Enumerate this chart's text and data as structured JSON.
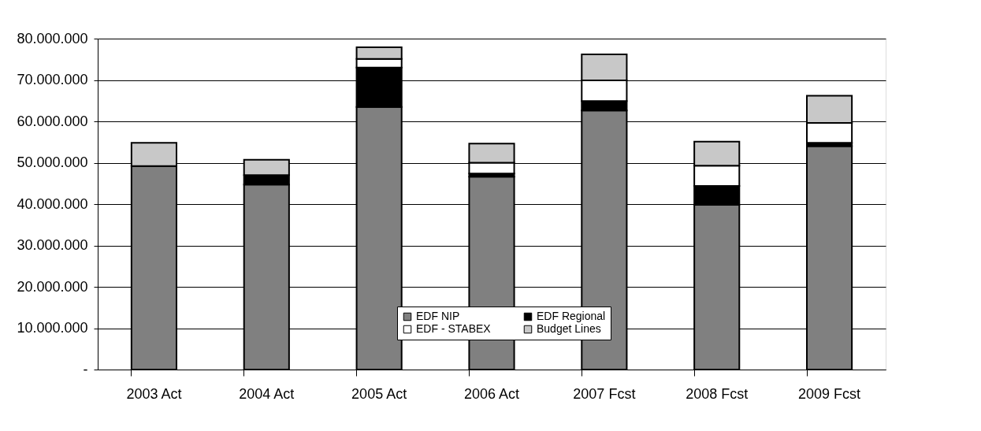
{
  "chart_data": {
    "type": "bar",
    "stacked": true,
    "categories": [
      "2003 Act",
      "2004 Act",
      "2005 Act",
      "2006 Act",
      "2007 Fcst",
      "2008 Fcst",
      "2009 Fcst"
    ],
    "series": [
      {
        "name": "EDF NIP",
        "color": "#808080",
        "values": [
          49200000,
          44700000,
          63500000,
          46600000,
          62600000,
          39800000,
          54000000
        ]
      },
      {
        "name": "EDF Regional",
        "color": "#000000",
        "values": [
          0,
          2300000,
          9500000,
          800000,
          2300000,
          4600000,
          800000
        ]
      },
      {
        "name": "EDF - STABEX",
        "color": "#ffffff",
        "values": [
          0,
          null,
          2100000,
          2600000,
          5000000,
          4900000,
          4800000
        ]
      },
      {
        "name": "Budget Lines",
        "color": "#c8c8c8",
        "values": [
          5600000,
          3700000,
          2800000,
          4600000,
          6300000,
          5800000,
          6600000
        ]
      }
    ],
    "ylim": [
      0,
      80000000
    ],
    "yticks": [
      {
        "value": 0,
        "label": "-"
      },
      {
        "value": 10000000,
        "label": "10.000.000"
      },
      {
        "value": 20000000,
        "label": "20.000.000"
      },
      {
        "value": 30000000,
        "label": "30.000.000"
      },
      {
        "value": 40000000,
        "label": "40.000.000"
      },
      {
        "value": 50000000,
        "label": "50.000.000"
      },
      {
        "value": 60000000,
        "label": "60.000.000"
      },
      {
        "value": 70000000,
        "label": "70.000.000"
      },
      {
        "value": 80000000,
        "label": "80.000.000"
      }
    ],
    "grid": "y",
    "legend": "bottom"
  }
}
